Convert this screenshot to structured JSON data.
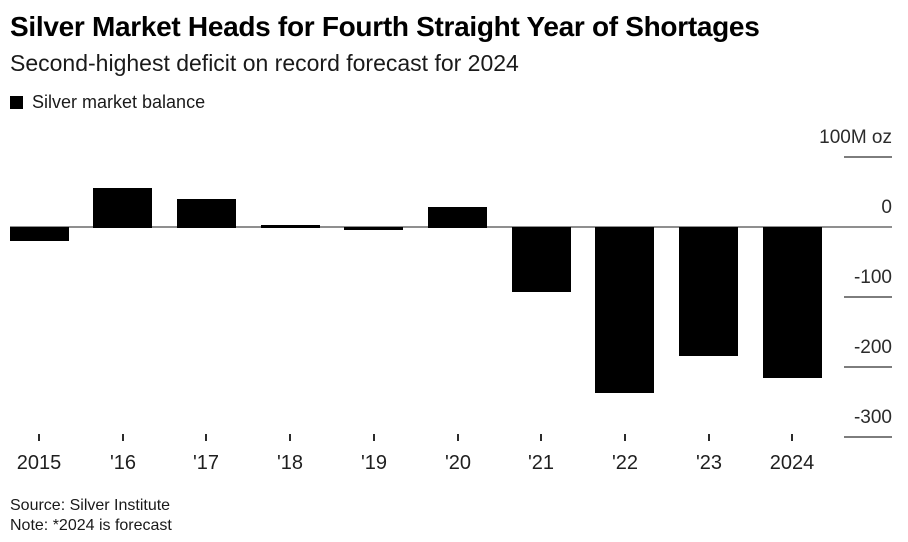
{
  "header": {
    "title": "Silver Market Heads for Fourth Straight Year of Shortages",
    "subtitle": "Second-highest deficit on record forecast for 2024"
  },
  "legend": {
    "label": "Silver market balance",
    "swatch_color": "#000000"
  },
  "chart_data": {
    "type": "bar",
    "title": "Silver market balance",
    "unit": "M oz",
    "categories": [
      "2015",
      "'16",
      "'17",
      "'18",
      "'19",
      "'20",
      "'21",
      "'22",
      "'23",
      "2024"
    ],
    "values": [
      -20,
      57,
      42,
      4,
      -4,
      30,
      -93,
      -237,
      -184,
      -215
    ],
    "xlabel": "",
    "ylabel": "100M oz",
    "ylim": [
      -320,
      110
    ],
    "yticks": [
      {
        "label": "100M oz",
        "value": 100
      },
      {
        "label": "0",
        "value": 0
      },
      {
        "label": "-100",
        "value": -100
      },
      {
        "label": "-200",
        "value": -200
      },
      {
        "label": "-300",
        "value": -300
      }
    ],
    "grid": "right-side tick segments only; full horizontal line at zero",
    "legend_position": "top-left",
    "bar_color": "#000000",
    "axis_color": "#8f8f8f"
  },
  "footer": {
    "source": "Source: Silver Institute",
    "note": "Note: *2024 is forecast"
  }
}
